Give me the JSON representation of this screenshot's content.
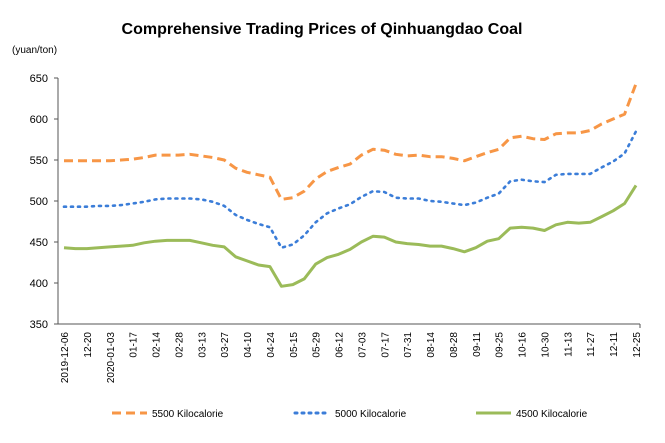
{
  "chart_data": {
    "type": "line",
    "title": "Comprehensive Trading Prices of Qinhuangdao Coal",
    "ylabel": "(yuan/ton)",
    "xlabel": "",
    "ylim": [
      350,
      650
    ],
    "yticks": [
      "650",
      "600",
      "550",
      "500",
      "450",
      "400",
      "350"
    ],
    "ytick_values": [
      650,
      600,
      550,
      500,
      450,
      400,
      350
    ],
    "x_labels": [
      "2019-12-06",
      "12-20",
      "2020-01-03",
      "01-17",
      "02-14",
      "02-28",
      "03-13",
      "03-27",
      "04-10",
      "04-24",
      "05-15",
      "05-29",
      "06-12",
      "07-03",
      "07-17",
      "07-31",
      "08-14",
      "08-28",
      "09-11",
      "09-25",
      "10-16",
      "10-30",
      "11-13",
      "11-27",
      "12-11",
      "12-25"
    ],
    "legend_position": "bottom",
    "grid": false,
    "series": [
      {
        "name": "5500 Kilocalorie",
        "color": "#F79646",
        "style": "dashed",
        "values": [
          549,
          549,
          549,
          549,
          549,
          550,
          551,
          553,
          556,
          556,
          556,
          557,
          555,
          553,
          550,
          540,
          535,
          532,
          529,
          502,
          504,
          512,
          527,
          536,
          541,
          545,
          556,
          563,
          562,
          557,
          555,
          556,
          554,
          554,
          552,
          549,
          554,
          559,
          563,
          577,
          579,
          576,
          575,
          582,
          583,
          583,
          586,
          594,
          600,
          606,
          643
        ]
      },
      {
        "name": "5000 Kilocalorie",
        "color": "#3B7DD8",
        "style": "dotted",
        "values": [
          493,
          493,
          493,
          494,
          494,
          495,
          497,
          499,
          502,
          503,
          503,
          503,
          502,
          499,
          494,
          483,
          477,
          472,
          468,
          443,
          447,
          458,
          474,
          485,
          491,
          496,
          505,
          512,
          511,
          504,
          503,
          503,
          500,
          499,
          497,
          495,
          498,
          504,
          509,
          524,
          526,
          524,
          523,
          532,
          533,
          533,
          533,
          541,
          548,
          558,
          585
        ]
      },
      {
        "name": "4500 Kilocalorie",
        "color": "#9BBB59",
        "style": "solid",
        "values": [
          443,
          442,
          442,
          443,
          444,
          445,
          446,
          449,
          451,
          452,
          452,
          452,
          449,
          446,
          444,
          432,
          427,
          422,
          420,
          396,
          398,
          405,
          423,
          431,
          435,
          441,
          450,
          457,
          456,
          450,
          448,
          447,
          445,
          445,
          442,
          438,
          443,
          451,
          454,
          467,
          468,
          467,
          464,
          471,
          474,
          473,
          474,
          481,
          488,
          497,
          519
        ]
      }
    ]
  }
}
